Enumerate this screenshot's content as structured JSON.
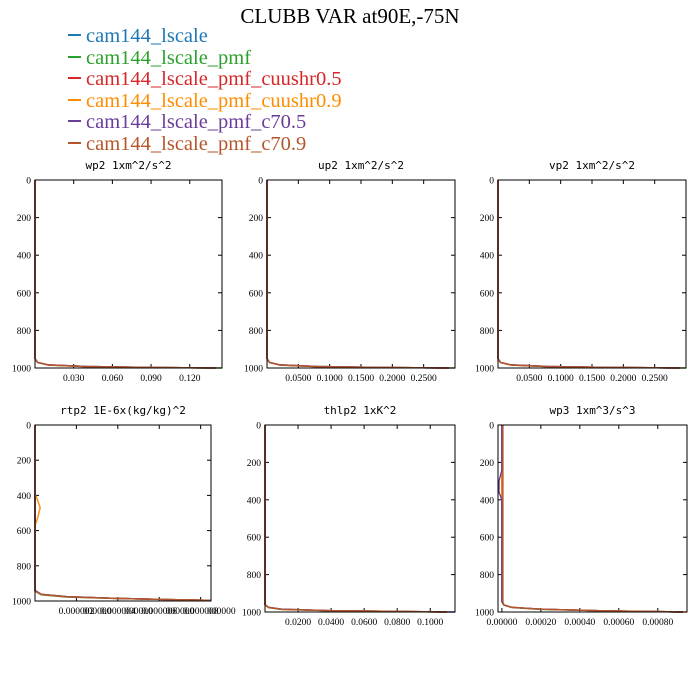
{
  "page": {
    "title": "CLUBB VAR at90E,-75N"
  },
  "legend": {
    "items": [
      {
        "label": "cam144_lscale",
        "color": "#1f77b4"
      },
      {
        "label": "cam144_lscale_pmf",
        "color": "#2ca02c"
      },
      {
        "label": "cam144_lscale_pmf_cuushr0.5",
        "color": "#d62728"
      },
      {
        "label": "cam144_lscale_pmf_cuushr0.9",
        "color": "#ff8c00"
      },
      {
        "label": "cam144_lscale_pmf_c70.5",
        "color": "#6a3d9a"
      },
      {
        "label": "cam144_lscale_pmf_c70.9",
        "color": "#b5562a"
      }
    ]
  },
  "chart_data": [
    {
      "type": "line",
      "title": "wp2   1xm^2/s^2",
      "ylim": [
        1000,
        0
      ],
      "yticks": [
        "0",
        "200",
        "400",
        "600",
        "800",
        "1000"
      ],
      "xlim": [
        0,
        0.145
      ],
      "xticks": [
        0.03,
        0.06,
        0.09,
        0.12
      ],
      "xticklabels": [
        "0.030",
        "0.060",
        "0.090",
        "0.120"
      ],
      "series": [
        {
          "name": "cam144_lscale",
          "x": [
            0,
            0,
            0.002,
            0.01,
            0.04,
            0.09,
            0.14
          ],
          "y": [
            0,
            950,
            970,
            983,
            992,
            997,
            1000
          ]
        },
        {
          "name": "cam144_lscale_pmf",
          "x": [
            0,
            0,
            0.002,
            0.01,
            0.04,
            0.09,
            0.145
          ],
          "y": [
            0,
            950,
            971,
            984,
            993,
            997,
            1000
          ]
        },
        {
          "name": "cam144_lscale_pmf_cuushr0.5",
          "x": [
            0,
            0,
            0.002,
            0.01,
            0.04,
            0.09,
            0.14
          ],
          "y": [
            0,
            950,
            970,
            983,
            992,
            997,
            1000
          ]
        },
        {
          "name": "cam144_lscale_pmf_cuushr0.9",
          "x": [
            0,
            0,
            0.002,
            0.01,
            0.04,
            0.09,
            0.14
          ],
          "y": [
            0,
            951,
            971,
            984,
            992,
            997,
            1000
          ]
        },
        {
          "name": "cam144_lscale_pmf_c70.5",
          "x": [
            0,
            0,
            0.002,
            0.01,
            0.04,
            0.09,
            0.14
          ],
          "y": [
            0,
            950,
            970,
            983,
            992,
            997,
            1000
          ]
        },
        {
          "name": "cam144_lscale_pmf_c70.9",
          "x": [
            0,
            0,
            0.002,
            0.01,
            0.04,
            0.09,
            0.14
          ],
          "y": [
            0,
            952,
            971,
            984,
            993,
            997,
            1000
          ]
        }
      ]
    },
    {
      "type": "line",
      "title": "up2   1xm^2/s^2",
      "ylim": [
        1000,
        0
      ],
      "yticks": [
        "0",
        "200",
        "400",
        "600",
        "800",
        "1000"
      ],
      "xlim": [
        0,
        0.3
      ],
      "xticks": [
        0.05,
        0.1,
        0.15,
        0.2,
        0.25
      ],
      "xticklabels": [
        "0.0500",
        "0.1000",
        "0.1500",
        "0.2000",
        "0.2500"
      ],
      "series": [
        {
          "name": "cam144_lscale",
          "x": [
            0,
            0,
            0.004,
            0.02,
            0.08,
            0.18,
            0.29
          ],
          "y": [
            0,
            950,
            970,
            983,
            992,
            997,
            1000
          ]
        },
        {
          "name": "cam144_lscale_pmf",
          "x": [
            0,
            0,
            0.004,
            0.02,
            0.08,
            0.18,
            0.3
          ],
          "y": [
            0,
            950,
            971,
            984,
            993,
            997,
            1000
          ]
        },
        {
          "name": "cam144_lscale_pmf_cuushr0.5",
          "x": [
            0,
            0,
            0.004,
            0.02,
            0.08,
            0.18,
            0.29
          ],
          "y": [
            0,
            950,
            970,
            983,
            992,
            997,
            1000
          ]
        },
        {
          "name": "cam144_lscale_pmf_cuushr0.9",
          "x": [
            0,
            0,
            0.004,
            0.02,
            0.08,
            0.18,
            0.29
          ],
          "y": [
            0,
            951,
            971,
            984,
            992,
            997,
            1000
          ]
        },
        {
          "name": "cam144_lscale_pmf_c70.5",
          "x": [
            0,
            0,
            0.004,
            0.02,
            0.08,
            0.18,
            0.29
          ],
          "y": [
            0,
            950,
            970,
            983,
            992,
            997,
            1000
          ]
        },
        {
          "name": "cam144_lscale_pmf_c70.9",
          "x": [
            0,
            0,
            0.004,
            0.02,
            0.08,
            0.18,
            0.29
          ],
          "y": [
            0,
            952,
            971,
            984,
            993,
            997,
            1000
          ]
        }
      ]
    },
    {
      "type": "line",
      "title": "vp2   1xm^2/s^2",
      "ylim": [
        1000,
        0
      ],
      "yticks": [
        "0",
        "200",
        "400",
        "600",
        "800",
        "1000"
      ],
      "xlim": [
        0,
        0.3
      ],
      "xticks": [
        0.05,
        0.1,
        0.15,
        0.2,
        0.25
      ],
      "xticklabels": [
        "0.0500",
        "0.1000",
        "0.1500",
        "0.2000",
        "0.2500"
      ],
      "series": [
        {
          "name": "cam144_lscale",
          "x": [
            0,
            0,
            0.004,
            0.02,
            0.08,
            0.18,
            0.29
          ],
          "y": [
            0,
            950,
            970,
            983,
            992,
            997,
            1000
          ]
        },
        {
          "name": "cam144_lscale_pmf",
          "x": [
            0,
            0,
            0.004,
            0.02,
            0.08,
            0.18,
            0.3
          ],
          "y": [
            0,
            950,
            971,
            984,
            993,
            997,
            1000
          ]
        },
        {
          "name": "cam144_lscale_pmf_cuushr0.5",
          "x": [
            0,
            0,
            0.004,
            0.02,
            0.08,
            0.18,
            0.29
          ],
          "y": [
            0,
            950,
            970,
            983,
            992,
            997,
            1000
          ]
        },
        {
          "name": "cam144_lscale_pmf_cuushr0.9",
          "x": [
            0,
            0,
            0.004,
            0.02,
            0.08,
            0.18,
            0.29
          ],
          "y": [
            0,
            951,
            971,
            984,
            992,
            997,
            1000
          ]
        },
        {
          "name": "cam144_lscale_pmf_c70.5",
          "x": [
            0,
            0,
            0.004,
            0.02,
            0.08,
            0.18,
            0.29
          ],
          "y": [
            0,
            950,
            970,
            983,
            992,
            997,
            1000
          ]
        },
        {
          "name": "cam144_lscale_pmf_c70.9",
          "x": [
            0,
            0,
            0.004,
            0.02,
            0.08,
            0.18,
            0.29
          ],
          "y": [
            0,
            952,
            971,
            984,
            993,
            997,
            1000
          ]
        }
      ]
    },
    {
      "type": "line",
      "title": "rtp2   1E-6x(kg/kg)^2",
      "ylim": [
        1000,
        0
      ],
      "yticks": [
        "0",
        "200",
        "400",
        "600",
        "800",
        "1000"
      ],
      "xlim": [
        0,
        8.5e-06
      ],
      "xticks": [
        2e-06,
        4e-06,
        6e-06,
        8e-06
      ],
      "xticklabels": [
        "0.000002",
        "0.000004",
        "0.000006",
        "0.000008"
      ],
      "minor_xticklabels": [
        "000000",
        "000000",
        "000000",
        "000000"
      ],
      "series": [
        {
          "name": "cam144_lscale",
          "x": [
            0,
            0,
            3e-07,
            1.5e-06,
            4e-06,
            6.5e-06,
            8.5e-06
          ],
          "y": [
            0,
            940,
            962,
            975,
            985,
            992,
            996
          ]
        },
        {
          "name": "cam144_lscale_pmf",
          "x": [
            0,
            0,
            3e-07,
            1.5e-06,
            4e-06,
            6.5e-06,
            8.5e-06
          ],
          "y": [
            0,
            945,
            965,
            977,
            986,
            992,
            996
          ]
        },
        {
          "name": "cam144_lscale_pmf_cuushr0.5",
          "x": [
            0,
            0,
            3e-07,
            1.5e-06,
            4e-06,
            6.5e-06,
            8.5e-06
          ],
          "y": [
            0,
            940,
            962,
            975,
            985,
            992,
            996
          ]
        },
        {
          "name": "cam144_lscale_pmf_cuushr0.9",
          "x": [
            0,
            0,
            1e-07,
            2.5e-07,
            1e-07,
            0,
            0,
            3e-07,
            1.5e-06,
            4e-06,
            6.5e-06,
            8.5e-06
          ],
          "y": [
            0,
            390,
            420,
            470,
            540,
            570,
            940,
            962,
            975,
            985,
            992,
            996
          ]
        },
        {
          "name": "cam144_lscale_pmf_c70.5",
          "x": [
            0,
            0,
            3e-07,
            1.5e-06,
            4e-06,
            6.5e-06,
            8.5e-06
          ],
          "y": [
            0,
            940,
            962,
            975,
            985,
            992,
            996
          ]
        },
        {
          "name": "cam144_lscale_pmf_c70.9",
          "x": [
            0,
            0,
            3e-07,
            1.5e-06,
            4e-06,
            6.5e-06,
            8.5e-06
          ],
          "y": [
            0,
            942,
            963,
            976,
            986,
            992,
            996
          ]
        }
      ]
    },
    {
      "type": "line",
      "title": "thlp2   1xK^2",
      "ylim": [
        1000,
        0
      ],
      "yticks": [
        "0",
        "200",
        "400",
        "600",
        "800",
        "1000"
      ],
      "xlim": [
        0,
        0.115
      ],
      "xticks": [
        0.02,
        0.04,
        0.06,
        0.08,
        0.1
      ],
      "xticklabels": [
        "0.0200",
        "0.0400",
        "0.0600",
        "0.0800",
        "0.1000"
      ],
      "series": [
        {
          "name": "cam144_lscale",
          "x": [
            0,
            0,
            0.002,
            0.01,
            0.04,
            0.08,
            0.11
          ],
          "y": [
            0,
            960,
            975,
            985,
            993,
            997,
            1000
          ]
        },
        {
          "name": "cam144_lscale_pmf",
          "x": [
            0,
            0,
            0.002,
            0.01,
            0.04,
            0.08,
            0.11
          ],
          "y": [
            0,
            961,
            976,
            986,
            993,
            997,
            1000
          ]
        },
        {
          "name": "cam144_lscale_pmf_cuushr0.5",
          "x": [
            0,
            0,
            0.002,
            0.01,
            0.04,
            0.08,
            0.11
          ],
          "y": [
            0,
            960,
            975,
            985,
            993,
            997,
            1000
          ]
        },
        {
          "name": "cam144_lscale_pmf_cuushr0.9",
          "x": [
            0,
            0,
            0.002,
            0.01,
            0.04,
            0.08,
            0.11
          ],
          "y": [
            0,
            960,
            975,
            985,
            993,
            997,
            1000
          ]
        },
        {
          "name": "cam144_lscale_pmf_c70.5",
          "x": [
            0,
            0,
            0.002,
            0.01,
            0.04,
            0.08,
            0.115
          ],
          "y": [
            0,
            960,
            975,
            985,
            993,
            997,
            1000
          ]
        },
        {
          "name": "cam144_lscale_pmf_c70.9",
          "x": [
            0,
            0,
            0.002,
            0.01,
            0.04,
            0.08,
            0.11
          ],
          "y": [
            0,
            961,
            976,
            986,
            993,
            997,
            1000
          ]
        }
      ]
    },
    {
      "type": "line",
      "title": "wp3   1xm^3/s^3",
      "ylim": [
        1000,
        0
      ],
      "yticks": [
        "0",
        "200",
        "400",
        "600",
        "800",
        "1000"
      ],
      "xlim": [
        -2e-05,
        0.00095
      ],
      "xticks": [
        0,
        0.0002,
        0.0004,
        0.0006,
        0.0008
      ],
      "xticklabels": [
        "0.00000",
        "0.00020",
        "0.00040",
        "0.00060",
        "0.00080"
      ],
      "series": [
        {
          "name": "cam144_lscale",
          "x": [
            0,
            0,
            1e-05,
            5e-05,
            0.0002,
            0.0005,
            0.00093
          ],
          "y": [
            0,
            945,
            962,
            975,
            985,
            993,
            1000
          ]
        },
        {
          "name": "cam144_lscale_pmf",
          "x": [
            0,
            0,
            1e-05,
            5e-05,
            0.0002,
            0.0005,
            0.00093
          ],
          "y": [
            0,
            945,
            963,
            976,
            986,
            993,
            1000
          ]
        },
        {
          "name": "cam144_lscale_pmf_cuushr0.5",
          "x": [
            0,
            0,
            1e-05,
            5e-05,
            0.0002,
            0.0005,
            0.00093
          ],
          "y": [
            0,
            945,
            962,
            975,
            985,
            993,
            1000
          ]
        },
        {
          "name": "cam144_lscale_pmf_cuushr0.9",
          "x": [
            0,
            0,
            1e-05,
            5e-05,
            0.0002,
            0.0005,
            0.00095
          ],
          "y": [
            0,
            945,
            962,
            975,
            985,
            993,
            1000
          ]
        },
        {
          "name": "cam144_lscale_pmf_c70.5",
          "x": [
            0,
            0,
            -1.5e-05,
            -1.5e-05,
            0,
            0,
            1e-05,
            5e-05,
            0.0002,
            0.0005,
            0.00093
          ],
          "y": [
            0,
            240,
            300,
            360,
            400,
            945,
            962,
            975,
            985,
            993,
            1000
          ]
        },
        {
          "name": "cam144_lscale_pmf_c70.9",
          "x": [
            5e-06,
            5e-06,
            1e-05,
            5e-05,
            0.0002,
            0.0005,
            0.00093
          ],
          "y": [
            0,
            945,
            962,
            975,
            985,
            993,
            1000
          ]
        }
      ]
    }
  ]
}
